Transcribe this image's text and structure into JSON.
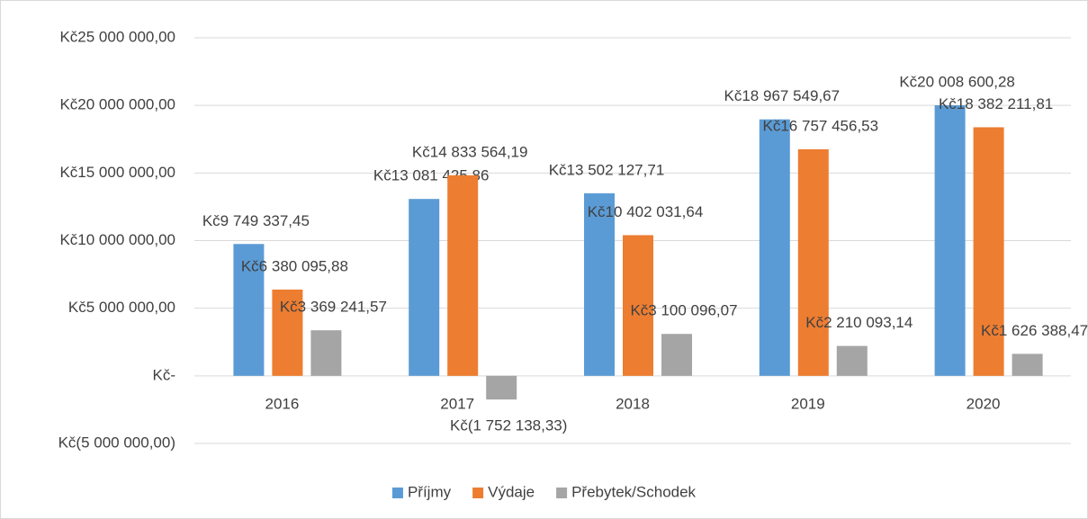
{
  "chart_data": {
    "type": "bar",
    "categories": [
      "2016",
      "2017",
      "2018",
      "2019",
      "2020"
    ],
    "series": [
      {
        "name": "Příjmy",
        "color": "#5b9bd5",
        "values": [
          9749337.45,
          13081425.86,
          13502127.71,
          18967549.67,
          20008600.28
        ],
        "value_labels": [
          "Kč9 749 337,45",
          "Kč13 081 425,86",
          "Kč13 502 127,71",
          "Kč18 967 549,67",
          "Kč20 008 600,28"
        ]
      },
      {
        "name": "Výdaje",
        "color": "#ed7d31",
        "values": [
          6380095.88,
          14833564.19,
          10402031.64,
          16757456.53,
          18382211.81
        ],
        "value_labels": [
          "Kč6 380 095,88",
          "Kč14 833 564,19",
          "Kč10 402 031,64",
          "Kč16 757 456,53",
          "Kč18 382 211,81"
        ]
      },
      {
        "name": "Přebytek/Schodek",
        "color": "#a5a5a5",
        "values": [
          3369241.57,
          -1752138.33,
          3100096.07,
          2210093.14,
          1626388.47
        ],
        "value_labels": [
          "Kč3 369 241,57",
          "Kč(1 752 138,33)",
          "Kč3 100 096,07",
          "Kč2 210 093,14",
          "Kč1 626 388,47"
        ]
      }
    ],
    "ylim": [
      -5000000,
      25000000
    ],
    "yticks": [
      {
        "value": -5000000,
        "label": "Kč(5 000 000,00)"
      },
      {
        "value": 0,
        "label": "Kč-"
      },
      {
        "value": 5000000,
        "label": "Kč5 000 000,00"
      },
      {
        "value": 10000000,
        "label": "Kč10 000 000,00"
      },
      {
        "value": 15000000,
        "label": "Kč15 000 000,00"
      },
      {
        "value": 20000000,
        "label": "Kč20 000 000,00"
      },
      {
        "value": 25000000,
        "label": "Kč25 000 000,00"
      }
    ],
    "grid": true,
    "legend": "bottom"
  }
}
